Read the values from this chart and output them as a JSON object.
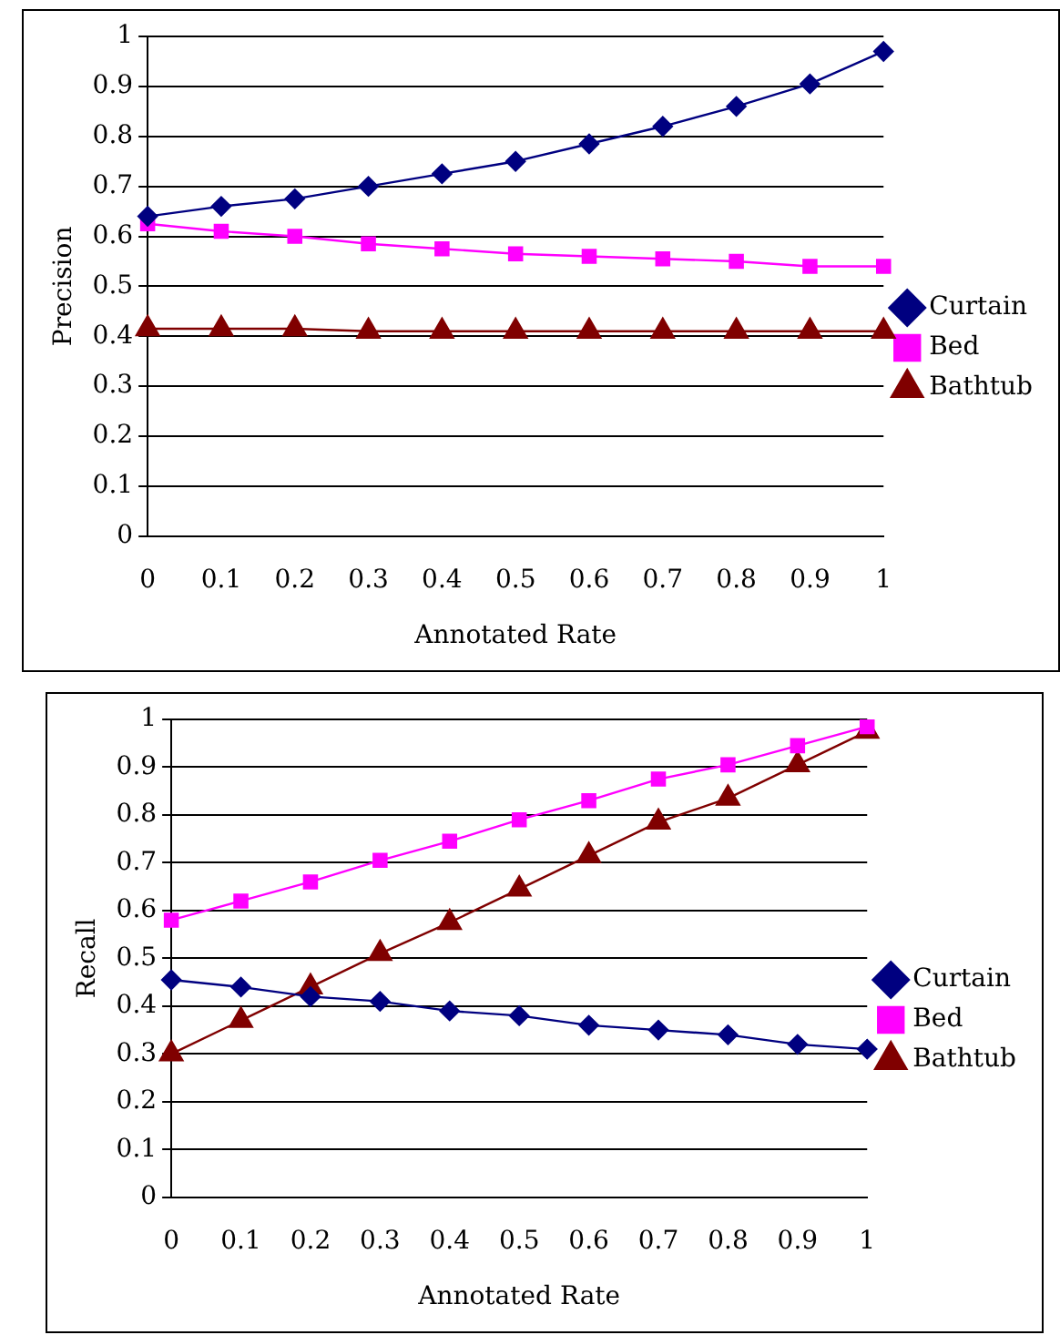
{
  "chart_data": [
    {
      "type": "line",
      "xlabel": "Annotated Rate",
      "ylabel": "Precision",
      "categories": [
        "0",
        "0.1",
        "0.2",
        "0.3",
        "0.4",
        "0.5",
        "0.6",
        "0.7",
        "0.8",
        "0.9",
        "1"
      ],
      "series": [
        {
          "name": "Curtain",
          "color": "#000080",
          "marker": "diamond",
          "values": [
            0.64,
            0.66,
            0.675,
            0.7,
            0.725,
            0.75,
            0.785,
            0.82,
            0.86,
            0.905,
            0.97
          ]
        },
        {
          "name": "Bed",
          "color": "#ff00ff",
          "marker": "square",
          "values": [
            0.625,
            0.61,
            0.6,
            0.585,
            0.575,
            0.565,
            0.56,
            0.555,
            0.55,
            0.54,
            0.54
          ]
        },
        {
          "name": "Bathtub",
          "color": "#800000",
          "marker": "triangle",
          "values": [
            0.415,
            0.415,
            0.415,
            0.41,
            0.41,
            0.41,
            0.41,
            0.41,
            0.41,
            0.41,
            0.41
          ]
        }
      ],
      "ylim": [
        0,
        1
      ],
      "yticks": [
        0,
        0.1,
        0.2,
        0.3,
        0.4,
        0.5,
        0.6,
        0.7,
        0.8,
        0.9,
        1
      ],
      "grid": "y",
      "legend": "right",
      "line_style": "solid"
    },
    {
      "type": "line",
      "xlabel": "Annotated Rate",
      "ylabel": "Recall",
      "categories": [
        "0",
        "0.1",
        "0.2",
        "0.3",
        "0.4",
        "0.5",
        "0.6",
        "0.7",
        "0.8",
        "0.9",
        "1"
      ],
      "series": [
        {
          "name": "Curtain",
          "color": "#000080",
          "marker": "diamond",
          "values": [
            0.455,
            0.44,
            0.42,
            0.41,
            0.39,
            0.38,
            0.36,
            0.35,
            0.34,
            0.32,
            0.31
          ]
        },
        {
          "name": "Bed",
          "color": "#ff00ff",
          "marker": "square",
          "values": [
            0.58,
            0.62,
            0.66,
            0.705,
            0.745,
            0.79,
            0.83,
            0.875,
            0.905,
            0.945,
            0.985
          ]
        },
        {
          "name": "Bathtub",
          "color": "#800000",
          "marker": "triangle",
          "values": [
            0.3,
            0.37,
            0.44,
            0.51,
            0.575,
            0.645,
            0.715,
            0.785,
            0.835,
            0.905,
            0.975
          ]
        }
      ],
      "ylim": [
        0,
        1
      ],
      "yticks": [
        0,
        0.1,
        0.2,
        0.3,
        0.4,
        0.5,
        0.6,
        0.7,
        0.8,
        0.9,
        1
      ],
      "grid": "y",
      "legend": "right",
      "line_style": "solid"
    }
  ]
}
